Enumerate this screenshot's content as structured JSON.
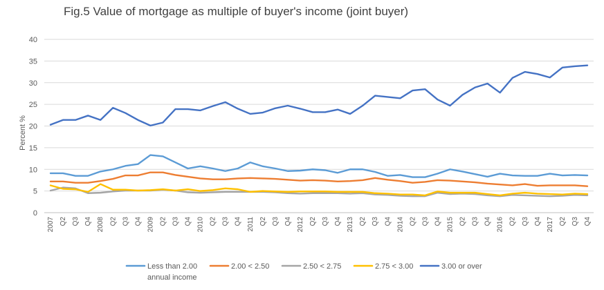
{
  "chart_data": {
    "type": "line",
    "title": "Fig.5  Value of mortgage as multiple of buyer's income (joint buyer)",
    "xlabel": "",
    "ylabel": "Percent  %",
    "ylim": [
      0,
      40
    ],
    "yticks": [
      0,
      5,
      10,
      15,
      20,
      25,
      30,
      35,
      40
    ],
    "grid": "horizontal",
    "legend_position": "bottom",
    "categories": [
      "2007",
      "Q2",
      "Q3",
      "Q4",
      "2008",
      "Q2",
      "Q3",
      "Q4",
      "2009",
      "Q2",
      "Q3",
      "Q4",
      "2010",
      "Q2",
      "Q3",
      "Q4",
      "2011",
      "Q2",
      "Q3",
      "Q4",
      "2012",
      "Q2",
      "Q3",
      "Q4",
      "2013",
      "Q2",
      "Q3",
      "Q4",
      "2014",
      "Q2",
      "Q3",
      "Q4",
      "2015",
      "Q2",
      "Q3",
      "Q4",
      "2016",
      "Q2",
      "Q3",
      "Q4",
      "2017",
      "Q2",
      "Q3",
      "Q4"
    ],
    "series": [
      {
        "name": "Less than 2.00 annual income",
        "legend_lines": [
          "Less than 2.00",
          "annual income"
        ],
        "color": "#5b9bd5",
        "values": [
          9.1,
          9.1,
          8.5,
          8.5,
          9.5,
          10.0,
          10.8,
          11.2,
          13.3,
          13.0,
          11.6,
          10.2,
          10.7,
          10.2,
          9.6,
          10.2,
          11.6,
          10.7,
          10.2,
          9.6,
          9.7,
          10.0,
          9.8,
          9.2,
          10.0,
          10.0,
          9.4,
          8.5,
          8.7,
          8.2,
          8.2,
          9.0,
          10.0,
          9.5,
          8.9,
          8.3,
          9.0,
          8.6,
          8.5,
          8.5,
          9.0,
          8.6,
          8.7,
          8.6
        ]
      },
      {
        "name": "2.00 < 2.50",
        "legend_lines": [
          "2.00 < 2.50"
        ],
        "color": "#ed7d31",
        "values": [
          7.2,
          7.2,
          6.9,
          6.9,
          7.3,
          7.8,
          8.6,
          8.6,
          9.3,
          9.3,
          8.7,
          8.3,
          7.9,
          7.7,
          7.7,
          7.9,
          8.0,
          7.9,
          7.8,
          7.6,
          7.4,
          7.5,
          7.4,
          7.2,
          7.3,
          7.5,
          8.0,
          7.6,
          7.3,
          6.9,
          7.1,
          7.5,
          7.4,
          7.2,
          7.0,
          6.7,
          6.5,
          6.3,
          6.6,
          6.2,
          6.3,
          6.3,
          6.3,
          6.1
        ]
      },
      {
        "name": "2.50 < 2.75",
        "legend_lines": [
          "2.50 < 2.75"
        ],
        "color": "#a5a5a5",
        "values": [
          5.1,
          5.8,
          5.6,
          4.5,
          4.6,
          4.9,
          5.1,
          5.1,
          5.1,
          5.3,
          5.1,
          4.7,
          4.6,
          4.7,
          4.8,
          4.8,
          4.8,
          4.8,
          4.7,
          4.5,
          4.4,
          4.5,
          4.5,
          4.5,
          4.4,
          4.5,
          4.2,
          4.1,
          3.9,
          3.8,
          3.8,
          4.6,
          4.3,
          4.4,
          4.3,
          4.0,
          3.8,
          4.1,
          4.0,
          3.9,
          3.8,
          3.9,
          4.1,
          4.0
        ]
      },
      {
        "name": "2.75 < 3.00",
        "legend_lines": [
          "2.75 < 3.00"
        ],
        "color": "#ffc000",
        "values": [
          6.3,
          5.5,
          5.4,
          4.8,
          6.6,
          5.3,
          5.3,
          5.1,
          5.2,
          5.4,
          5.1,
          5.4,
          5.0,
          5.2,
          5.6,
          5.4,
          4.8,
          5.0,
          4.9,
          4.8,
          4.9,
          4.9,
          4.9,
          4.8,
          4.8,
          4.8,
          4.5,
          4.4,
          4.2,
          4.2,
          4.0,
          4.9,
          4.6,
          4.6,
          4.6,
          4.3,
          4.0,
          4.4,
          4.6,
          4.4,
          4.3,
          4.2,
          4.4,
          4.3
        ]
      },
      {
        "name": "3.00 or over",
        "legend_lines": [
          "3.00 or over"
        ],
        "color": "#4472c4",
        "values": [
          20.3,
          21.4,
          21.4,
          22.4,
          21.4,
          24.2,
          23.0,
          21.4,
          20.1,
          20.8,
          23.9,
          23.9,
          23.6,
          24.6,
          25.5,
          24.0,
          22.8,
          23.1,
          24.1,
          24.7,
          24.0,
          23.2,
          23.2,
          23.8,
          22.8,
          24.7,
          27.0,
          26.7,
          26.4,
          28.2,
          28.5,
          26.1,
          24.7,
          27.2,
          28.9,
          29.8,
          27.7,
          31.1,
          32.5,
          32.0,
          31.2,
          33.5,
          33.8,
          34.0
        ]
      }
    ]
  }
}
